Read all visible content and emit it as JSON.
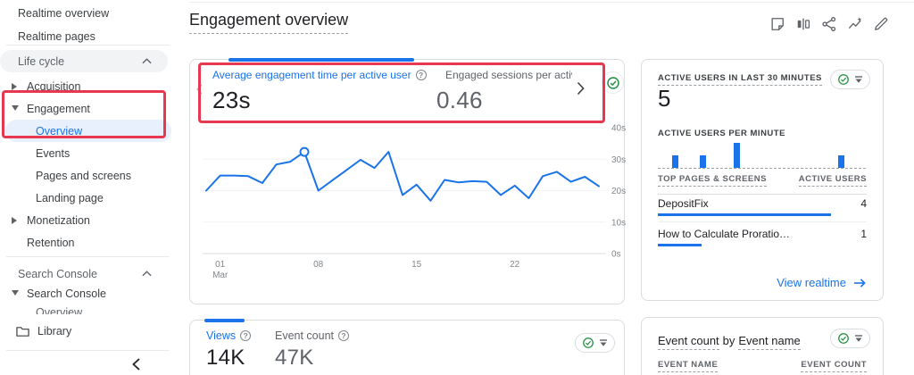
{
  "colors": {
    "accent_blue": "#1a73e8",
    "annotation_red": "#e8384f",
    "check_green": "#1e8e3e",
    "text_dark": "#202124",
    "text_grey": "#5f6368",
    "border_grey": "#dadce0",
    "selected_item_bg": "#e8f0fe"
  },
  "sidebar": {
    "realtime_items": [
      {
        "label": "Realtime overview"
      },
      {
        "label": "Realtime pages"
      }
    ],
    "lifecycle": {
      "header": "Life cycle",
      "items": [
        {
          "label": "Acquisition",
          "arrow": "right"
        },
        {
          "label": "Engagement",
          "arrow": "down"
        },
        {
          "label": "Overview",
          "child": true,
          "selected": true
        },
        {
          "label": "Events",
          "child": true
        },
        {
          "label": "Pages and screens",
          "child": true
        },
        {
          "label": "Landing page",
          "child": true
        },
        {
          "label": "Monetization",
          "arrow": "right"
        },
        {
          "label": "Retention"
        }
      ]
    },
    "search_console": {
      "header": "Search Console",
      "items": [
        {
          "label": "Search Console",
          "arrow": "down"
        },
        {
          "label": "Overview",
          "child": true,
          "clipped": true
        }
      ]
    },
    "library": {
      "label": "Library"
    }
  },
  "header": {
    "title": "Engagement overview",
    "action_icons": [
      "note",
      "comparison",
      "share",
      "insights",
      "edit"
    ]
  },
  "engagement_card": {
    "metrics": [
      {
        "label": "Average engagement time per active user",
        "value": "23s",
        "selected": true,
        "has_help": true
      },
      {
        "label": "Engaged sessions per active user",
        "value": "0.46",
        "selected": false
      }
    ]
  },
  "realtime_card": {
    "title": "ACTIVE USERS IN LAST 30 MINUTES",
    "active_users": "5",
    "per_minute_label": "ACTIVE USERS PER MINUTE",
    "table": {
      "columns": [
        "TOP PAGES & SCREENS",
        "ACTIVE USERS"
      ],
      "rows": [
        {
          "page": "DepositFix",
          "users": "4",
          "bar_pct": 83
        },
        {
          "page": "How to Calculate Proratio…",
          "users": "1",
          "bar_pct": 21
        }
      ]
    },
    "link": "View realtime"
  },
  "views_card": {
    "metrics": [
      {
        "label": "Views",
        "value": "14K",
        "selected": true,
        "has_help": true
      },
      {
        "label": "Event count",
        "value": "47K",
        "selected": false,
        "has_help": true
      }
    ]
  },
  "event_card": {
    "title_parts": [
      {
        "text": "Event count",
        "underlined": true
      },
      {
        "text": "by",
        "underlined": false
      },
      {
        "text": "Event name",
        "underlined": true
      }
    ],
    "columns": [
      "EVENT NAME",
      "EVENT COUNT"
    ]
  },
  "chart_data": [
    {
      "type": "line",
      "title": "Average engagement time per active user (daily)",
      "x_unit": "day",
      "line_color": "#1a73e8",
      "ylim": [
        0,
        40
      ],
      "y_ticks": [
        {
          "value": 0,
          "label": "0s"
        },
        {
          "value": 10,
          "label": "10s"
        },
        {
          "value": 20,
          "label": "20s"
        },
        {
          "value": 30,
          "label": "30s"
        },
        {
          "value": 40,
          "label": "40s"
        }
      ],
      "x_ticks": [
        {
          "index": 1,
          "lines": [
            "01",
            "Mar"
          ]
        },
        {
          "index": 8,
          "lines": [
            "08"
          ]
        },
        {
          "index": 15,
          "lines": [
            "15"
          ]
        },
        {
          "index": 22,
          "lines": [
            "22"
          ]
        }
      ],
      "values_seconds": [
        20,
        24.8,
        24.8,
        24.6,
        22.4,
        28.3,
        29.2,
        32.3,
        20,
        23.3,
        26.5,
        29.8,
        27.2,
        32.3,
        18.6,
        21.9,
        16.8,
        23.4,
        22.6,
        23,
        22.8,
        18.6,
        21.6,
        17.6,
        24.6,
        26,
        22.8,
        24.4,
        21.4
      ],
      "marker_index": 7
    },
    {
      "type": "bar",
      "title": "Active users per minute (last 30 minutes)",
      "slots": 30,
      "bar_color": "#1a73e8",
      "bars": [
        {
          "minute": 2,
          "value": 1
        },
        {
          "minute": 6,
          "value": 1
        },
        {
          "minute": 11,
          "value": 2
        },
        {
          "minute": 26,
          "value": 1
        }
      ]
    }
  ]
}
